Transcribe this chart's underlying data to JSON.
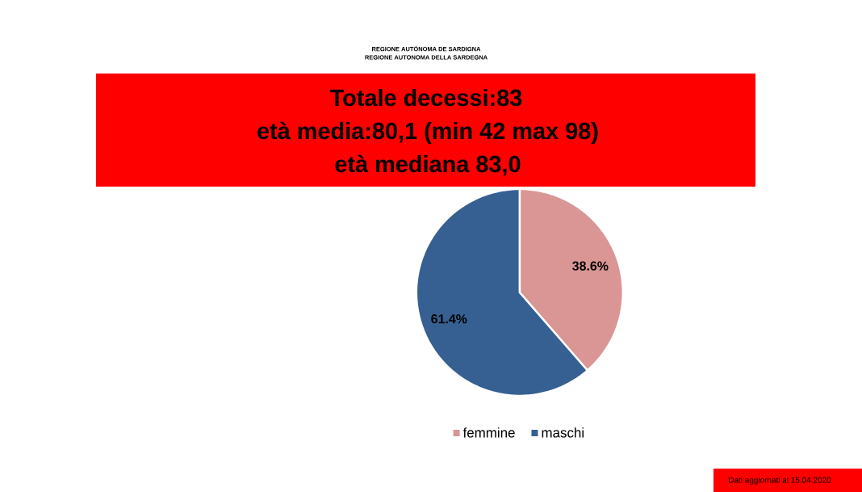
{
  "chart_data": {
    "type": "pie",
    "title": "Totale decessi:83",
    "subtitle": "età media:80,1 (min 42 max 98)",
    "annotations": [
      "età mediana 83,0",
      "REGIONE AUTÒNOMA DE SARDIGNA",
      "REGIONE AUTONOMA DELLA SARDEGNA",
      "Dati aggiornati al 15.04.2020"
    ],
    "categories": [
      "femmine",
      "maschi"
    ],
    "values": [
      38.6,
      61.4
    ],
    "colors": [
      "#d99694",
      "#376092"
    ],
    "value_labels": [
      "38.6%",
      "61.4%"
    ],
    "legend": "bottom"
  }
}
